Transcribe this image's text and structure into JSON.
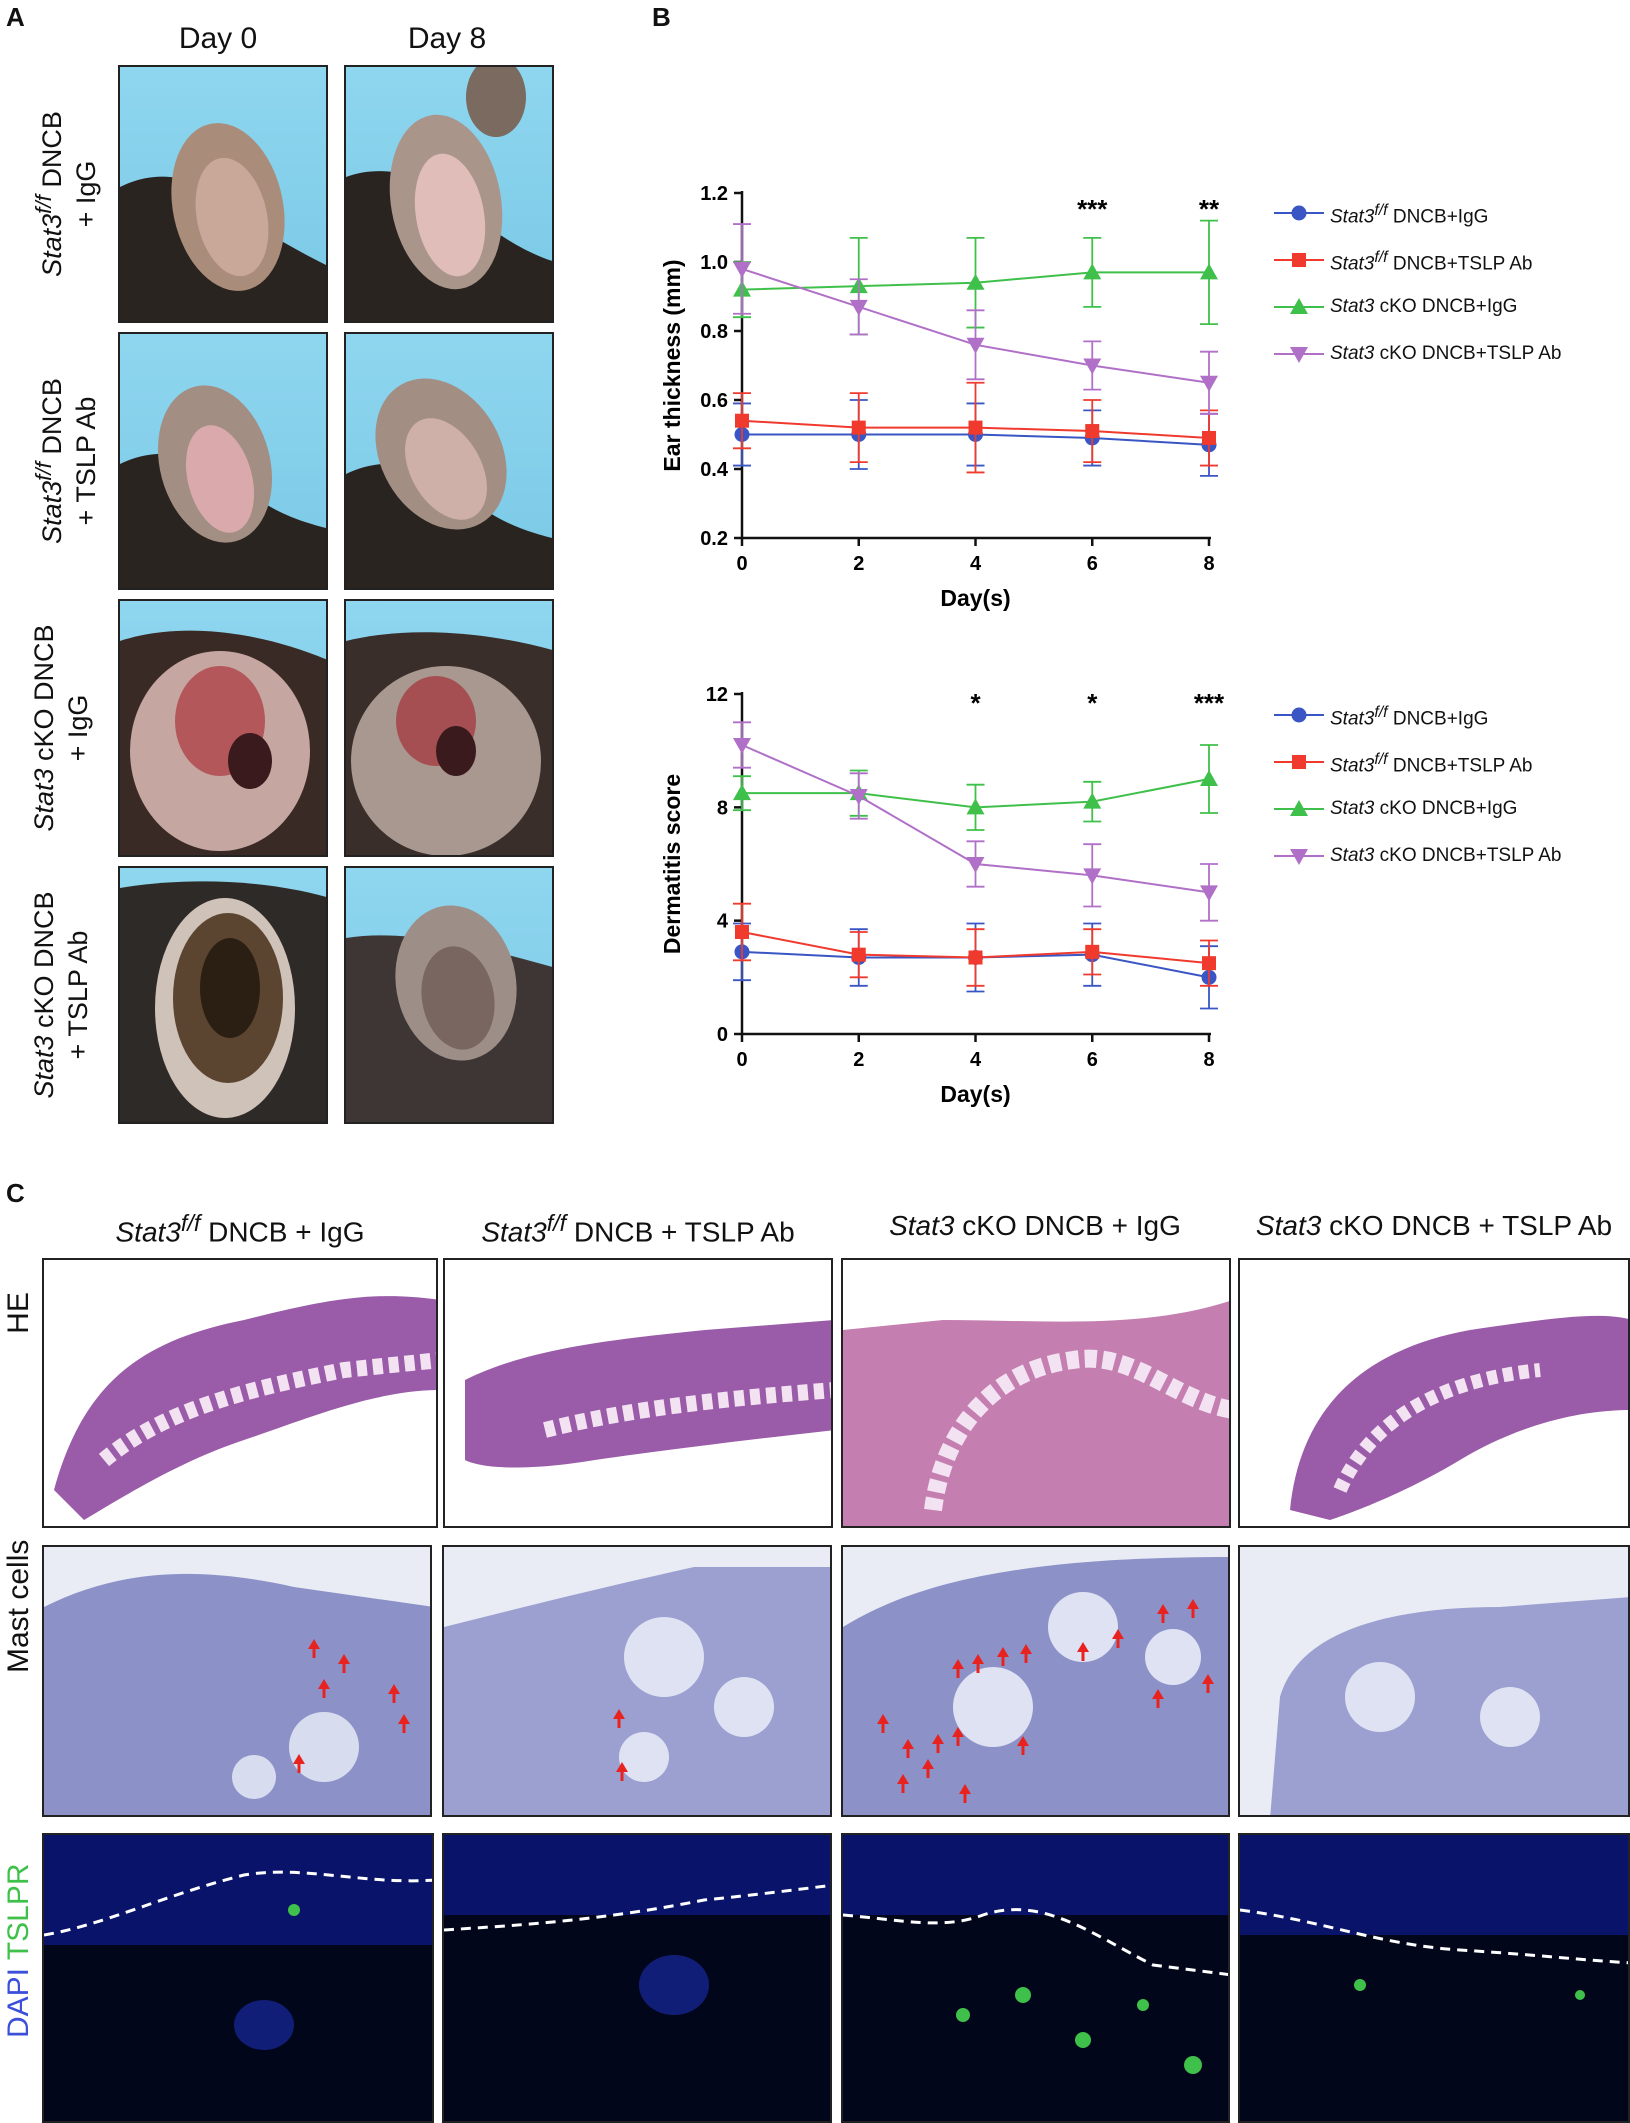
{
  "panel_a": {
    "letter": "A",
    "columns": [
      "Day 0",
      "Day 8"
    ],
    "rows": [
      {
        "line1_italic": "Stat3",
        "line1_sup": "f/f",
        "line1_rest": " DNCB",
        "line2": "+ IgG"
      },
      {
        "line1_italic": "Stat3",
        "line1_sup": "f/f",
        "line1_rest": " DNCB",
        "line2": "+ TSLP Ab"
      },
      {
        "line1_italic": "Stat3",
        "line1_sup": "",
        "line1_rest": " cKO DNCB",
        "line2": "+ IgG"
      },
      {
        "line1_italic": "Stat3",
        "line1_sup": "",
        "line1_rest": " cKO DNCB",
        "line2": "+ TSLP Ab"
      }
    ]
  },
  "panel_b": {
    "letter": "B",
    "legend": [
      {
        "italic": "Stat3",
        "sup": "f/f",
        "rest": " DNCB+IgG",
        "color": "#3a55c4",
        "marker": "circle"
      },
      {
        "italic": "Stat3",
        "sup": "f/f",
        "rest": " DNCB+TSLP Ab",
        "color": "#f03a2e",
        "marker": "square"
      },
      {
        "italic": "Stat3",
        "sup": "",
        "rest": " cKO DNCB+IgG",
        "color": "#3fc04a",
        "marker": "triangle-up"
      },
      {
        "italic": "Stat3",
        "sup": "",
        "rest": " cKO DNCB+TSLP Ab",
        "color": "#b070c8",
        "marker": "triangle-down"
      }
    ]
  },
  "chart_data": [
    {
      "type": "line",
      "title": "",
      "xlabel": "Day(s)",
      "ylabel": "Ear thickness (mm)",
      "x": [
        0,
        2,
        4,
        6,
        8
      ],
      "xticks": [
        "0",
        "2",
        "4",
        "6",
        "8"
      ],
      "ylim": [
        0.2,
        1.2
      ],
      "yticks": [
        "0.2",
        "0.4",
        "0.6",
        "0.8",
        "1.0",
        "1.2"
      ],
      "series": [
        {
          "name": "Stat3f/f DNCB+IgG",
          "values": [
            0.5,
            0.5,
            0.5,
            0.49,
            0.47
          ],
          "err": [
            0.09,
            0.1,
            0.09,
            0.08,
            0.09
          ]
        },
        {
          "name": "Stat3f/f DNCB+TSLP Ab",
          "values": [
            0.54,
            0.52,
            0.52,
            0.51,
            0.49
          ],
          "err": [
            0.08,
            0.1,
            0.13,
            0.09,
            0.08
          ]
        },
        {
          "name": "Stat3 cKO DNCB+IgG",
          "values": [
            0.92,
            0.93,
            0.94,
            0.97,
            0.97
          ],
          "err": [
            0.08,
            0.14,
            0.13,
            0.1,
            0.15
          ]
        },
        {
          "name": "Stat3 cKO DNCB+TSLP Ab",
          "values": [
            0.98,
            0.87,
            0.76,
            0.7,
            0.65
          ],
          "err": [
            0.13,
            0.08,
            0.1,
            0.07,
            0.09
          ]
        }
      ],
      "significance": [
        {
          "x": 6,
          "label": "***"
        },
        {
          "x": 8,
          "label": "**"
        }
      ]
    },
    {
      "type": "line",
      "title": "",
      "xlabel": "Day(s)",
      "ylabel": "Dermatitis score",
      "x": [
        0,
        2,
        4,
        6,
        8
      ],
      "xticks": [
        "0",
        "2",
        "4",
        "6",
        "8"
      ],
      "ylim": [
        0,
        12
      ],
      "yticks": [
        "0",
        "4",
        "8",
        "12"
      ],
      "series": [
        {
          "name": "Stat3f/f DNCB+IgG",
          "values": [
            2.9,
            2.7,
            2.7,
            2.8,
            2.0
          ],
          "err": [
            1.0,
            1.0,
            1.2,
            1.1,
            1.1
          ]
        },
        {
          "name": "Stat3f/f DNCB+TSLP Ab",
          "values": [
            3.6,
            2.8,
            2.7,
            2.9,
            2.5
          ],
          "err": [
            1.0,
            0.8,
            1.0,
            0.8,
            0.8
          ]
        },
        {
          "name": "Stat3 cKO DNCB+IgG",
          "values": [
            8.5,
            8.5,
            8.0,
            8.2,
            9.0
          ],
          "err": [
            0.6,
            0.8,
            0.8,
            0.7,
            1.2
          ]
        },
        {
          "name": "Stat3 cKO DNCB+TSLP Ab",
          "values": [
            10.2,
            8.4,
            6.0,
            5.6,
            5.0
          ],
          "err": [
            0.8,
            0.8,
            0.8,
            1.1,
            1.0
          ]
        }
      ],
      "significance": [
        {
          "x": 4,
          "label": "*"
        },
        {
          "x": 6,
          "label": "*"
        },
        {
          "x": 8,
          "label": "***"
        }
      ]
    }
  ],
  "panel_c": {
    "letter": "C",
    "columns": [
      {
        "italic": "Stat3",
        "sup": "f/f",
        "rest": " DNCB + IgG"
      },
      {
        "italic": "Stat3",
        "sup": "f/f",
        "rest": " DNCB + TSLP Ab"
      },
      {
        "italic": "Stat3",
        "sup": "",
        "rest": " cKO DNCB + IgG"
      },
      {
        "italic": "Stat3",
        "sup": "",
        "rest": " cKO DNCB + TSLP Ab"
      }
    ],
    "rows": {
      "he": "HE",
      "mast": "Mast cells",
      "dapi": "DAPI",
      "tslpr": "TSLPR"
    },
    "colors": {
      "dapi": "#3b4fd8",
      "tslpr": "#3fc04a",
      "arrow": "#e8231f"
    }
  }
}
